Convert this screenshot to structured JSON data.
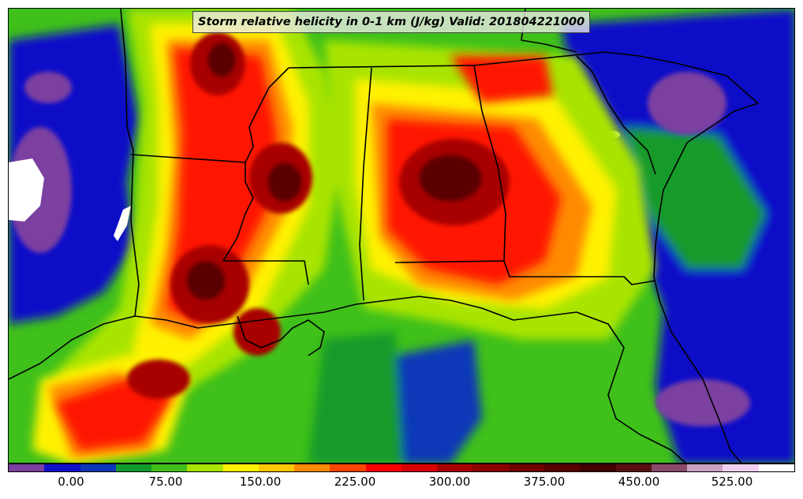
{
  "title": "Storm relative helicity in 0-1 km (J/kg) Valid: 201804221000",
  "legend": {
    "tick_labels": [
      "0.00",
      "75.00",
      "150.00",
      "225.00",
      "300.00",
      "375.00",
      "450.00",
      "525.00"
    ],
    "colors": [
      "#7b3fa0",
      "#1010c8",
      "#0b37b8",
      "#129a2a",
      "#3fc01a",
      "#a8e400",
      "#fff200",
      "#ffc800",
      "#ff8a00",
      "#ff4400",
      "#ff0000",
      "#d80000",
      "#a80000",
      "#8c0000",
      "#700000",
      "#560000",
      "#440000",
      "#5a1010",
      "#8a4a6a",
      "#c8a0c0",
      "#f0d0f0",
      "#ffffff"
    ]
  },
  "map": {
    "palette": {
      "purple": "#7b3fa0",
      "blue": "#1010c8",
      "navy": "#0b37b8",
      "dark_green": "#129a2a",
      "green": "#3fc01a",
      "lime": "#a8e400",
      "yellow": "#fff200",
      "orange": "#ff8a00",
      "red": "#ff1400",
      "dark_red": "#a80000",
      "maroon": "#5a0000",
      "pink": "#e8c8e8",
      "white": "#ffffff",
      "boundary": "#000000"
    }
  }
}
